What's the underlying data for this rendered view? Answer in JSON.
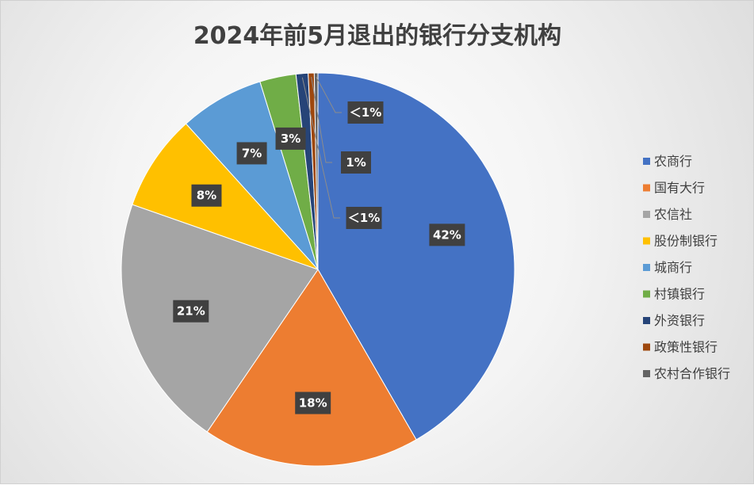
{
  "chart_data": {
    "type": "pie",
    "title": "2024年前5月退出的银行分支机构",
    "legend_position": "right",
    "slices": [
      {
        "name": "农商行",
        "value": 42,
        "label": "42%",
        "color": "#4472C4"
      },
      {
        "name": "国有大行",
        "value": 18,
        "label": "18%",
        "color": "#ED7D31"
      },
      {
        "name": "农信社",
        "value": 21,
        "label": "21%",
        "color": "#A5A5A5"
      },
      {
        "name": "股份制银行",
        "value": 8,
        "label": "8%",
        "color": "#FFC000"
      },
      {
        "name": "城商行",
        "value": 7,
        "label": "7%",
        "color": "#5B9BD5"
      },
      {
        "name": "村镇银行",
        "value": 3,
        "label": "3%",
        "color": "#70AD47"
      },
      {
        "name": "外资银行",
        "value": 1,
        "label": "＜1%",
        "color": "#264478"
      },
      {
        "name": "政策性银行",
        "value": 0.5,
        "label": "1%",
        "color": "#9E480E"
      },
      {
        "name": "农村合作银行",
        "value": 0.3,
        "label": "＜1%",
        "color": "#636363"
      }
    ]
  }
}
